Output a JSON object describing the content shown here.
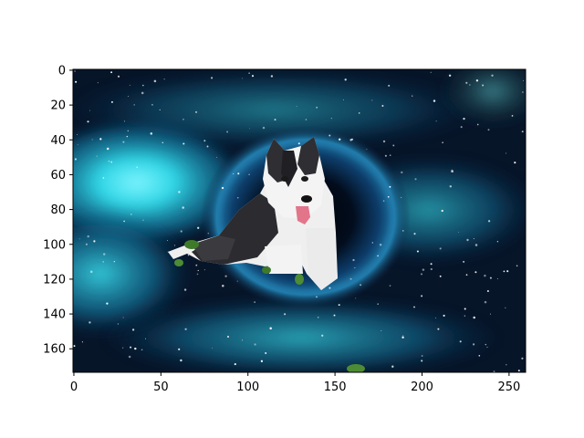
{
  "chart_data": {
    "type": "image",
    "title": "",
    "xlabel": "",
    "ylabel": "",
    "xlim": [
      -0.5,
      259.5
    ],
    "ylim": [
      173.5,
      -0.5
    ],
    "y_inverted": true,
    "xticks": [
      0,
      50,
      100,
      150,
      200,
      250
    ],
    "yticks": [
      0,
      20,
      40,
      60,
      80,
      100,
      120,
      140,
      160
    ],
    "grid": false,
    "image_content": {
      "description_colors": {
        "space_dark": "#061226",
        "nebula_cyan": "#2fd6e6",
        "nebula_blue": "#1d6fa8",
        "hole_center": "#020812",
        "dog_white": "#f2f2f2",
        "dog_dark": "#2a2a2e",
        "tongue": "#e2758a",
        "leaf_green": "#3f7a2a"
      },
      "dog_center_data": [
        130,
        90
      ],
      "black_hole_center_data": [
        135,
        85
      ]
    }
  }
}
